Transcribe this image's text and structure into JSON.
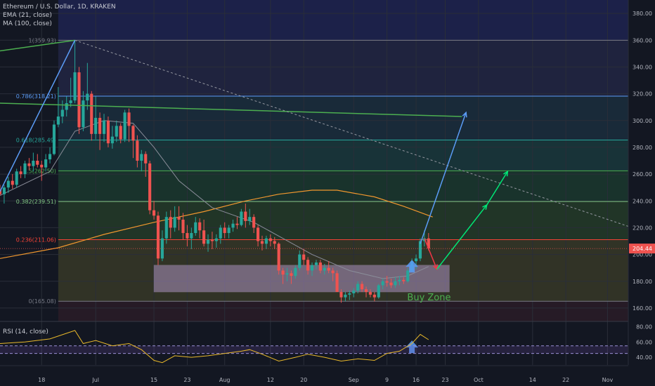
{
  "header": {
    "symbol": "Ethereum / U.S. Dollar, 1D, KRAKEN",
    "ema": "EMA (21, close)",
    "ma": "MA (100, close)",
    "rsi": "RSI (14, close)"
  },
  "price_badge": {
    "value": "204.44",
    "color": "#ef5350"
  },
  "buy_zone_label": "Buy Zone",
  "chart_data": {
    "type": "candlestick",
    "title": "Ethereum / U.S. Dollar, 1D, KRAKEN",
    "ylim": [
      150,
      390
    ],
    "y_ticks": [
      160,
      180,
      200,
      220,
      240,
      260,
      280,
      300,
      320,
      340,
      360,
      380
    ],
    "x_ticks": [
      "18",
      "Jul",
      "15",
      "23",
      "Aug",
      "12",
      "20",
      "Sep",
      "9",
      "16",
      "23",
      "Oct",
      "14",
      "22",
      "Nov"
    ],
    "x_tick_dates": [
      "2019-06-18",
      "2019-07-01",
      "2019-07-15",
      "2019-07-23",
      "2019-08-01",
      "2019-08-12",
      "2019-08-20",
      "2019-09-01",
      "2019-09-09",
      "2019-09-16",
      "2019-09-23",
      "2019-10-01",
      "2019-10-14",
      "2019-10-22",
      "2019-11-01"
    ],
    "x_range": [
      "2019-06-08",
      "2019-11-06"
    ],
    "colors": {
      "up": "#26a69a",
      "down": "#ef5350",
      "ema": "#8a8d99",
      "ma": "#f0972e",
      "rsi": "#e8b82a"
    },
    "candles": [
      {
        "d": "2019-06-08",
        "o": 248,
        "h": 252,
        "l": 244,
        "c": 245
      },
      {
        "d": "2019-06-09",
        "o": 245,
        "h": 252,
        "l": 238,
        "c": 250
      },
      {
        "d": "2019-06-10",
        "o": 250,
        "h": 258,
        "l": 246,
        "c": 255
      },
      {
        "d": "2019-06-11",
        "o": 255,
        "h": 260,
        "l": 249,
        "c": 252
      },
      {
        "d": "2019-06-12",
        "o": 252,
        "h": 264,
        "l": 250,
        "c": 262
      },
      {
        "d": "2019-06-13",
        "o": 262,
        "h": 266,
        "l": 257,
        "c": 260
      },
      {
        "d": "2019-06-14",
        "o": 260,
        "h": 270,
        "l": 257,
        "c": 268
      },
      {
        "d": "2019-06-15",
        "o": 268,
        "h": 272,
        "l": 263,
        "c": 266
      },
      {
        "d": "2019-06-16",
        "o": 266,
        "h": 276,
        "l": 262,
        "c": 270
      },
      {
        "d": "2019-06-17",
        "o": 270,
        "h": 275,
        "l": 265,
        "c": 267
      },
      {
        "d": "2019-06-18",
        "o": 267,
        "h": 270,
        "l": 255,
        "c": 265
      },
      {
        "d": "2019-06-19",
        "o": 265,
        "h": 275,
        "l": 262,
        "c": 271
      },
      {
        "d": "2019-06-20",
        "o": 271,
        "h": 280,
        "l": 268,
        "c": 275
      },
      {
        "d": "2019-06-21",
        "o": 275,
        "h": 300,
        "l": 274,
        "c": 297
      },
      {
        "d": "2019-06-22",
        "o": 297,
        "h": 325,
        "l": 295,
        "c": 303
      },
      {
        "d": "2019-06-23",
        "o": 303,
        "h": 315,
        "l": 298,
        "c": 308
      },
      {
        "d": "2019-06-24",
        "o": 308,
        "h": 318,
        "l": 303,
        "c": 313
      },
      {
        "d": "2019-06-25",
        "o": 313,
        "h": 332,
        "l": 310,
        "c": 315
      },
      {
        "d": "2019-06-26",
        "o": 315,
        "h": 360,
        "l": 313,
        "c": 336
      },
      {
        "d": "2019-06-27",
        "o": 336,
        "h": 340,
        "l": 290,
        "c": 295
      },
      {
        "d": "2019-06-28",
        "o": 295,
        "h": 322,
        "l": 292,
        "c": 315
      },
      {
        "d": "2019-06-29",
        "o": 315,
        "h": 343,
        "l": 308,
        "c": 320
      },
      {
        "d": "2019-06-30",
        "o": 320,
        "h": 322,
        "l": 285,
        "c": 290
      },
      {
        "d": "2019-07-01",
        "o": 290,
        "h": 318,
        "l": 286,
        "c": 302
      },
      {
        "d": "2019-07-02",
        "o": 302,
        "h": 306,
        "l": 278,
        "c": 290
      },
      {
        "d": "2019-07-03",
        "o": 290,
        "h": 305,
        "l": 284,
        "c": 300
      },
      {
        "d": "2019-07-04",
        "o": 300,
        "h": 303,
        "l": 280,
        "c": 283
      },
      {
        "d": "2019-07-05",
        "o": 283,
        "h": 296,
        "l": 279,
        "c": 288
      },
      {
        "d": "2019-07-06",
        "o": 288,
        "h": 300,
        "l": 284,
        "c": 296
      },
      {
        "d": "2019-07-07",
        "o": 296,
        "h": 298,
        "l": 283,
        "c": 286
      },
      {
        "d": "2019-07-08",
        "o": 286,
        "h": 308,
        "l": 284,
        "c": 306
      },
      {
        "d": "2019-07-09",
        "o": 306,
        "h": 309,
        "l": 284,
        "c": 296
      },
      {
        "d": "2019-07-10",
        "o": 296,
        "h": 297,
        "l": 272,
        "c": 285
      },
      {
        "d": "2019-07-11",
        "o": 285,
        "h": 289,
        "l": 265,
        "c": 270
      },
      {
        "d": "2019-07-12",
        "o": 270,
        "h": 278,
        "l": 262,
        "c": 275
      },
      {
        "d": "2019-07-13",
        "o": 275,
        "h": 277,
        "l": 258,
        "c": 268
      },
      {
        "d": "2019-07-14",
        "o": 268,
        "h": 270,
        "l": 230,
        "c": 233
      },
      {
        "d": "2019-07-15",
        "o": 233,
        "h": 240,
        "l": 226,
        "c": 229
      },
      {
        "d": "2019-07-16",
        "o": 229,
        "h": 232,
        "l": 192,
        "c": 197
      },
      {
        "d": "2019-07-17",
        "o": 197,
        "h": 218,
        "l": 195,
        "c": 212
      },
      {
        "d": "2019-07-18",
        "o": 212,
        "h": 232,
        "l": 208,
        "c": 228
      },
      {
        "d": "2019-07-19",
        "o": 228,
        "h": 233,
        "l": 212,
        "c": 220
      },
      {
        "d": "2019-07-20",
        "o": 220,
        "h": 236,
        "l": 217,
        "c": 228
      },
      {
        "d": "2019-07-21",
        "o": 228,
        "h": 236,
        "l": 218,
        "c": 226
      },
      {
        "d": "2019-07-22",
        "o": 226,
        "h": 231,
        "l": 211,
        "c": 216
      },
      {
        "d": "2019-07-23",
        "o": 216,
        "h": 222,
        "l": 206,
        "c": 212
      },
      {
        "d": "2019-07-24",
        "o": 212,
        "h": 220,
        "l": 204,
        "c": 216
      },
      {
        "d": "2019-07-25",
        "o": 216,
        "h": 228,
        "l": 214,
        "c": 224
      },
      {
        "d": "2019-07-26",
        "o": 224,
        "h": 227,
        "l": 212,
        "c": 218
      },
      {
        "d": "2019-07-27",
        "o": 218,
        "h": 226,
        "l": 206,
        "c": 208
      },
      {
        "d": "2019-07-28",
        "o": 208,
        "h": 215,
        "l": 202,
        "c": 211
      },
      {
        "d": "2019-07-29",
        "o": 211,
        "h": 217,
        "l": 204,
        "c": 210
      },
      {
        "d": "2019-07-30",
        "o": 210,
        "h": 215,
        "l": 205,
        "c": 212
      },
      {
        "d": "2019-07-31",
        "o": 212,
        "h": 222,
        "l": 208,
        "c": 220
      },
      {
        "d": "2019-08-01",
        "o": 220,
        "h": 224,
        "l": 212,
        "c": 216
      },
      {
        "d": "2019-08-02",
        "o": 216,
        "h": 222,
        "l": 212,
        "c": 220
      },
      {
        "d": "2019-08-03",
        "o": 220,
        "h": 226,
        "l": 217,
        "c": 223
      },
      {
        "d": "2019-08-04",
        "o": 223,
        "h": 228,
        "l": 219,
        "c": 222
      },
      {
        "d": "2019-08-05",
        "o": 222,
        "h": 234,
        "l": 221,
        "c": 232
      },
      {
        "d": "2019-08-06",
        "o": 232,
        "h": 238,
        "l": 220,
        "c": 225
      },
      {
        "d": "2019-08-07",
        "o": 225,
        "h": 234,
        "l": 222,
        "c": 228
      },
      {
        "d": "2019-08-08",
        "o": 228,
        "h": 230,
        "l": 216,
        "c": 220
      },
      {
        "d": "2019-08-09",
        "o": 220,
        "h": 222,
        "l": 206,
        "c": 210
      },
      {
        "d": "2019-08-10",
        "o": 210,
        "h": 214,
        "l": 203,
        "c": 208
      },
      {
        "d": "2019-08-11",
        "o": 208,
        "h": 214,
        "l": 204,
        "c": 212
      },
      {
        "d": "2019-08-12",
        "o": 212,
        "h": 215,
        "l": 206,
        "c": 210
      },
      {
        "d": "2019-08-13",
        "o": 210,
        "h": 213,
        "l": 204,
        "c": 208
      },
      {
        "d": "2019-08-14",
        "o": 208,
        "h": 209,
        "l": 185,
        "c": 188
      },
      {
        "d": "2019-08-15",
        "o": 188,
        "h": 190,
        "l": 178,
        "c": 185
      },
      {
        "d": "2019-08-16",
        "o": 185,
        "h": 190,
        "l": 180,
        "c": 186
      },
      {
        "d": "2019-08-17",
        "o": 186,
        "h": 188,
        "l": 178,
        "c": 184
      },
      {
        "d": "2019-08-18",
        "o": 184,
        "h": 192,
        "l": 182,
        "c": 190
      },
      {
        "d": "2019-08-19",
        "o": 190,
        "h": 203,
        "l": 188,
        "c": 200
      },
      {
        "d": "2019-08-20",
        "o": 200,
        "h": 204,
        "l": 192,
        "c": 196
      },
      {
        "d": "2019-08-21",
        "o": 196,
        "h": 198,
        "l": 185,
        "c": 188
      },
      {
        "d": "2019-08-22",
        "o": 188,
        "h": 194,
        "l": 184,
        "c": 192
      },
      {
        "d": "2019-08-23",
        "o": 192,
        "h": 196,
        "l": 189,
        "c": 194
      },
      {
        "d": "2019-08-24",
        "o": 194,
        "h": 196,
        "l": 186,
        "c": 188
      },
      {
        "d": "2019-08-25",
        "o": 188,
        "h": 193,
        "l": 185,
        "c": 190
      },
      {
        "d": "2019-08-26",
        "o": 190,
        "h": 195,
        "l": 186,
        "c": 188
      },
      {
        "d": "2019-08-27",
        "o": 188,
        "h": 190,
        "l": 180,
        "c": 186
      },
      {
        "d": "2019-08-28",
        "o": 186,
        "h": 188,
        "l": 174,
        "c": 172
      },
      {
        "d": "2019-08-29",
        "o": 172,
        "h": 174,
        "l": 164,
        "c": 168
      },
      {
        "d": "2019-08-30",
        "o": 168,
        "h": 172,
        "l": 165,
        "c": 170
      },
      {
        "d": "2019-08-31",
        "o": 170,
        "h": 173,
        "l": 166,
        "c": 171
      },
      {
        "d": "2019-09-01",
        "o": 171,
        "h": 175,
        "l": 168,
        "c": 173
      },
      {
        "d": "2019-09-02",
        "o": 173,
        "h": 180,
        "l": 171,
        "c": 178
      },
      {
        "d": "2019-09-03",
        "o": 178,
        "h": 180,
        "l": 172,
        "c": 174
      },
      {
        "d": "2019-09-04",
        "o": 174,
        "h": 176,
        "l": 168,
        "c": 172
      },
      {
        "d": "2019-09-05",
        "o": 172,
        "h": 174,
        "l": 168,
        "c": 170
      },
      {
        "d": "2019-09-06",
        "o": 170,
        "h": 172,
        "l": 165,
        "c": 168
      },
      {
        "d": "2019-09-07",
        "o": 168,
        "h": 178,
        "l": 167,
        "c": 177
      },
      {
        "d": "2019-09-08",
        "o": 177,
        "h": 182,
        "l": 174,
        "c": 180
      },
      {
        "d": "2019-09-09",
        "o": 180,
        "h": 184,
        "l": 176,
        "c": 179
      },
      {
        "d": "2019-09-10",
        "o": 179,
        "h": 182,
        "l": 175,
        "c": 177
      },
      {
        "d": "2019-09-11",
        "o": 177,
        "h": 183,
        "l": 175,
        "c": 180
      },
      {
        "d": "2019-09-12",
        "o": 180,
        "h": 184,
        "l": 177,
        "c": 181
      },
      {
        "d": "2019-09-13",
        "o": 181,
        "h": 183,
        "l": 178,
        "c": 180
      },
      {
        "d": "2019-09-14",
        "o": 180,
        "h": 190,
        "l": 179,
        "c": 188
      },
      {
        "d": "2019-09-15",
        "o": 188,
        "h": 197,
        "l": 187,
        "c": 195
      },
      {
        "d": "2019-09-16",
        "o": 195,
        "h": 200,
        "l": 189,
        "c": 197
      },
      {
        "d": "2019-09-17",
        "o": 197,
        "h": 212,
        "l": 195,
        "c": 210
      },
      {
        "d": "2019-09-18",
        "o": 210,
        "h": 218,
        "l": 206,
        "c": 212
      },
      {
        "d": "2019-09-19",
        "o": 212,
        "h": 216,
        "l": 203,
        "c": 204.44
      }
    ],
    "ema21": [
      [
        "2019-06-08",
        244
      ],
      [
        "2019-06-20",
        262
      ],
      [
        "2019-06-26",
        292
      ],
      [
        "2019-07-03",
        300
      ],
      [
        "2019-07-10",
        298
      ],
      [
        "2019-07-15",
        280
      ],
      [
        "2019-07-21",
        255
      ],
      [
        "2019-07-29",
        235
      ],
      [
        "2019-08-08",
        224
      ],
      [
        "2019-08-15",
        212
      ],
      [
        "2019-08-22",
        200
      ],
      [
        "2019-08-31",
        188
      ],
      [
        "2019-09-08",
        182
      ],
      [
        "2019-09-14",
        184
      ],
      [
        "2019-09-19",
        191
      ]
    ],
    "ma100": [
      [
        "2019-06-08",
        197
      ],
      [
        "2019-06-22",
        205
      ],
      [
        "2019-07-03",
        215
      ],
      [
        "2019-07-15",
        224
      ],
      [
        "2019-07-27",
        232
      ],
      [
        "2019-08-06",
        240
      ],
      [
        "2019-08-14",
        245
      ],
      [
        "2019-08-22",
        248
      ],
      [
        "2019-08-28",
        248
      ],
      [
        "2019-09-06",
        243
      ],
      [
        "2019-09-13",
        236
      ],
      [
        "2019-09-20",
        228
      ]
    ],
    "rsi": {
      "ylim": [
        30,
        85
      ],
      "ticks": [
        40,
        60,
        80
      ],
      "labels": [
        "40.00",
        "60.00",
        "80.00"
      ],
      "bands": [
        45,
        55
      ],
      "values": [
        [
          "2019-06-08",
          58
        ],
        [
          "2019-06-14",
          60
        ],
        [
          "2019-06-20",
          64
        ],
        [
          "2019-06-26",
          75
        ],
        [
          "2019-06-28",
          58
        ],
        [
          "2019-07-01",
          62
        ],
        [
          "2019-07-05",
          55
        ],
        [
          "2019-07-09",
          58
        ],
        [
          "2019-07-12",
          50
        ],
        [
          "2019-07-15",
          36
        ],
        [
          "2019-07-17",
          33
        ],
        [
          "2019-07-20",
          42
        ],
        [
          "2019-07-24",
          40
        ],
        [
          "2019-07-28",
          42
        ],
        [
          "2019-08-01",
          45
        ],
        [
          "2019-08-05",
          48
        ],
        [
          "2019-08-07",
          50
        ],
        [
          "2019-08-10",
          44
        ],
        [
          "2019-08-14",
          35
        ],
        [
          "2019-08-18",
          40
        ],
        [
          "2019-08-21",
          44
        ],
        [
          "2019-08-25",
          40
        ],
        [
          "2019-08-29",
          35
        ],
        [
          "2019-09-02",
          38
        ],
        [
          "2019-09-06",
          36
        ],
        [
          "2019-09-09",
          45
        ],
        [
          "2019-09-12",
          48
        ],
        [
          "2019-09-15",
          58
        ],
        [
          "2019-09-17",
          70
        ],
        [
          "2019-09-19",
          63
        ]
      ]
    },
    "fibonacci": [
      {
        "ratio": "1",
        "price": 359.93,
        "label": "1(359.93)",
        "color": "#787b86"
      },
      {
        "ratio": "0.786",
        "price": 318.21,
        "label": "0.786(318.21)",
        "color": "#5b9cf6"
      },
      {
        "ratio": "0.618",
        "price": 285.49,
        "label": "0.618(285.49)",
        "color": "#26a69a"
      },
      {
        "ratio": "0.5",
        "price": 262.5,
        "label": "0.5(262.50)",
        "color": "#4caf50"
      },
      {
        "ratio": "0.382",
        "price": 239.51,
        "label": "0.382(239.51)",
        "color": "#81c784"
      },
      {
        "ratio": "0.236",
        "price": 211.06,
        "label": "0.236(211.06)",
        "color": "#f44336"
      },
      {
        "ratio": "0",
        "price": 165.08,
        "label": "0(165.08)",
        "color": "#787b86"
      }
    ],
    "fib_start": "2019-06-22",
    "trendlines": [
      {
        "name": "green-resistance",
        "color": "#4caf50",
        "from": [
          "2019-06-08",
          313
        ],
        "to": [
          "2019-09-27",
          303
        ]
      },
      {
        "name": "upper-green",
        "color": "#4caf50",
        "from": [
          "2019-06-08",
          352
        ],
        "to": [
          "2019-06-26",
          359.93
        ]
      },
      {
        "name": "dashed-descending",
        "color": "#9598a1",
        "dashed": true,
        "from": [
          "2019-06-26",
          359.93
        ],
        "to": [
          "2019-11-06",
          221
        ]
      },
      {
        "name": "rise-to-top",
        "color": "#5b9cf6",
        "from": [
          "2019-06-08",
          247
        ],
        "to": [
          "2019-06-26",
          359.93
        ]
      },
      {
        "name": "blue-projection",
        "color": "#5b9cf6",
        "from": [
          "2019-09-17",
          208
        ],
        "to": [
          "2019-09-28",
          306
        ]
      },
      {
        "name": "red-pullback",
        "color": "#f23645",
        "from": [
          "2019-09-18",
          212
        ],
        "to": [
          "2019-09-21",
          189
        ]
      },
      {
        "name": "green-projection-1",
        "color": "#00e676",
        "from": [
          "2019-09-21",
          189
        ],
        "to": [
          "2019-10-03",
          237
        ]
      },
      {
        "name": "green-projection-2",
        "color": "#00e676",
        "from": [
          "2019-10-03",
          237
        ],
        "to": [
          "2019-10-08",
          262
        ]
      }
    ],
    "buy_zone": {
      "from": "2019-07-15",
      "to": "2019-09-24",
      "low": 172,
      "high": 192
    }
  }
}
